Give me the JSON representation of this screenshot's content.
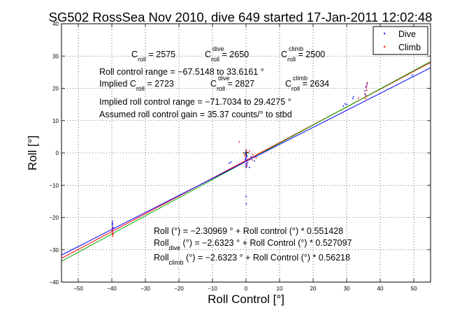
{
  "chart_data": {
    "type": "scatter",
    "title": "SG502 RossSea Nov 2010, dive 649 started 17-Jan-2011 12:02:48",
    "xlabel": "Roll Control [°]",
    "ylabel": "Roll [°]",
    "xlim": [
      -55,
      55
    ],
    "ylim": [
      -40,
      40
    ],
    "xticks": [
      -50,
      -40,
      -30,
      -20,
      -10,
      0,
      10,
      20,
      30,
      40,
      50
    ],
    "yticks": [
      -40,
      -30,
      -20,
      -10,
      0,
      10,
      20,
      30,
      40
    ],
    "xtick_labels": [
      "−50",
      "−40",
      "−30",
      "−20",
      "−10",
      "0",
      "10",
      "20",
      "30",
      "40",
      "50"
    ],
    "ytick_labels": [
      "−40",
      "−30",
      "−20",
      "−10",
      "0",
      "10",
      "20",
      "30",
      "40"
    ],
    "grid": true,
    "legend_position": "top-right",
    "series": [
      {
        "name": "Dive",
        "color": "#0000ff",
        "points": [
          [
            -39.8,
            -21.2
          ],
          [
            -39.8,
            -21.8
          ],
          [
            -39.8,
            -22.4
          ],
          [
            -39.8,
            -23.0
          ],
          [
            -39.8,
            -23.6
          ],
          [
            -39.7,
            -24.2
          ],
          [
            -39.8,
            -24.8
          ],
          [
            -39.9,
            -22.0
          ],
          [
            -39.6,
            -23.2
          ],
          [
            0.0,
            -0.5
          ],
          [
            0.1,
            -1.5
          ],
          [
            -0.1,
            -2.5
          ],
          [
            0.2,
            -3.5
          ],
          [
            0.0,
            -4.5
          ],
          [
            0.3,
            -1.0
          ],
          [
            -0.2,
            -2.0
          ],
          [
            0.5,
            -3.0
          ],
          [
            0.2,
            -4.0
          ],
          [
            0.0,
            -13.5
          ],
          [
            0.1,
            -15.8
          ],
          [
            0.0,
            -0.2
          ],
          [
            -0.1,
            -3.8
          ],
          [
            0.4,
            -2.2
          ],
          [
            0.0,
            -1.8
          ],
          [
            0.2,
            -0.8
          ],
          [
            1.5,
            -1.2
          ],
          [
            2.5,
            -2.5
          ],
          [
            1.0,
            -4.5
          ],
          [
            -5.0,
            -3.2
          ],
          [
            -4.5,
            -2.8
          ],
          [
            29.0,
            14.5
          ],
          [
            29.5,
            15.2
          ],
          [
            30.0,
            15.0
          ],
          [
            31.8,
            16.8
          ],
          [
            32.0,
            17.4
          ],
          [
            35.6,
            18.0
          ],
          [
            35.5,
            19.2
          ],
          [
            35.8,
            20.6
          ],
          [
            36.0,
            21.5
          ],
          [
            49.5,
            24.0
          ]
        ]
      },
      {
        "name": "Climb",
        "color": "#ff0000",
        "points": [
          [
            -39.8,
            -23.2
          ],
          [
            -39.8,
            -24.2
          ],
          [
            -39.8,
            -24.8
          ],
          [
            -39.8,
            -25.3
          ],
          [
            -39.7,
            -25.8
          ],
          [
            -39.9,
            -24.0
          ],
          [
            -39.6,
            -25.0
          ],
          [
            -2.0,
            3.4
          ],
          [
            0.0,
            1.0
          ],
          [
            0.3,
            0.2
          ],
          [
            -0.2,
            -1.2
          ],
          [
            0.5,
            -2.3
          ],
          [
            0.1,
            -3.2
          ],
          [
            1.0,
            0.6
          ],
          [
            2.0,
            -0.5
          ],
          [
            3.0,
            -1.5
          ],
          [
            1.8,
            -2.2
          ],
          [
            -0.5,
            -0.6
          ],
          [
            0.2,
            -4.2
          ],
          [
            35.6,
            16.8
          ],
          [
            35.8,
            17.6
          ],
          [
            35.4,
            18.4
          ],
          [
            36.0,
            19.4
          ],
          [
            35.7,
            20.2
          ],
          [
            36.1,
            21.0
          ],
          [
            33.5,
            17.0
          ],
          [
            36.2,
            21.8
          ]
        ]
      },
      {
        "name": "",
        "color": "#000000",
        "marker": "+",
        "points": [
          [
            0.0,
            0.0
          ]
        ]
      }
    ],
    "fit_lines": [
      {
        "color": "#ff0000",
        "intercept": -2.30969,
        "slope": 0.551428
      },
      {
        "color": "#00aa00",
        "intercept": -2.6323,
        "slope": 0.56218
      },
      {
        "color": "#0000ff",
        "intercept": -2.6323,
        "slope": 0.527097
      }
    ],
    "annotations": {
      "c_roll": {
        "base": "C",
        "sub": "roll",
        "sup": "",
        "value": " = 2575"
      },
      "c_roll_dive": {
        "base": "C",
        "sub": "roll",
        "sup": "dive",
        "value": " = 2650"
      },
      "c_roll_climb": {
        "base": "C",
        "sub": "roll",
        "sup": "climb",
        "value": " = 2500"
      },
      "roll_control_range": "Roll control range = −67.5148 to 33.6161 °",
      "implied_prefix": "Implied ",
      "implied_c_roll": {
        "base": "C",
        "sub": "roll",
        "sup": "",
        "value": " = 2723"
      },
      "implied_c_roll_dive": {
        "base": "C",
        "sub": "roll",
        "sup": "dive",
        "value": " = 2827"
      },
      "implied_c_roll_climb": {
        "base": "C",
        "sub": "roll",
        "sup": "climb",
        "value": " = 2634"
      },
      "implied_range": "Implied roll control range = −71.7034 to 29.4275 °",
      "assumed_gain": "Assumed roll control gain = 35.37 counts/° to stbd",
      "eq_all": "Roll (°) = −2.30969 ° + Roll control (°) * 0.551428",
      "eq_dive_name": "Roll",
      "eq_dive_sub": "dive",
      "eq_dive_rest": " (°) = −2.6323 ° + Roll Control (°) * 0.527097",
      "eq_climb_name": "Roll",
      "eq_climb_sub": "climb",
      "eq_climb_rest": " (°) = −2.6323 ° + Roll Control (°) * 0.56218"
    }
  }
}
